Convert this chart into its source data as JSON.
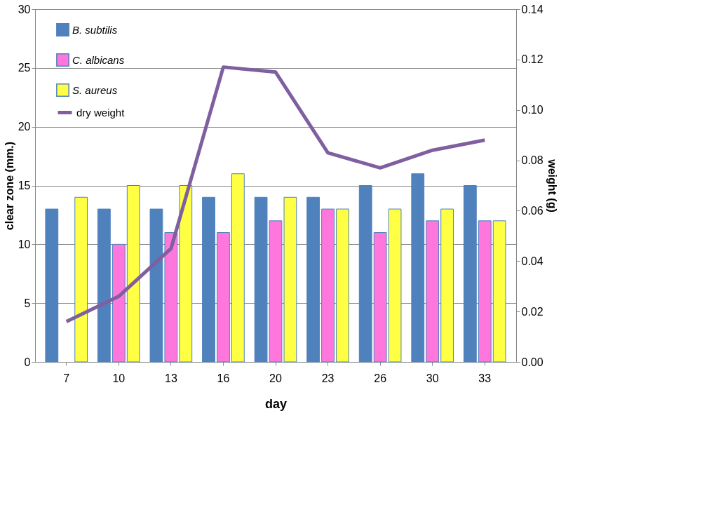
{
  "chart_data": {
    "type": "bar",
    "xlabel": "day",
    "ylabel": "clear zone (mm.)",
    "y2label": "weight (g)",
    "categories": [
      "7",
      "10",
      "13",
      "16",
      "20",
      "23",
      "26",
      "30",
      "33"
    ],
    "series": [
      {
        "name": "B. subtilis",
        "color": "#4f81bd",
        "values": [
          13,
          13,
          13,
          14,
          14,
          14,
          15,
          16,
          15
        ]
      },
      {
        "name": "C. albicans",
        "color": "#ff77dd",
        "values": [
          null,
          10,
          11,
          11,
          12,
          13,
          11,
          12,
          12
        ]
      },
      {
        "name": "S. aureus",
        "color": "#ffff44",
        "values": [
          14,
          15,
          15,
          16,
          14,
          13,
          13,
          13,
          12
        ]
      },
      {
        "name": "dry weight",
        "color": "#7f5fa0",
        "type": "line",
        "axis": "y2",
        "values": [
          0.016,
          0.026,
          0.045,
          0.117,
          0.115,
          0.083,
          0.077,
          0.084,
          0.088
        ]
      }
    ],
    "ylim": [
      0,
      30
    ],
    "yticks": [
      0,
      5,
      10,
      15,
      20,
      25,
      30
    ],
    "y2lim": [
      0,
      0.14
    ],
    "y2ticks": [
      {
        "value": 0,
        "label": "0.00"
      },
      {
        "value": 0.02,
        "label": "0.02"
      },
      {
        "value": 0.04,
        "label": "0.04"
      },
      {
        "value": 0.06,
        "label": "0.06"
      },
      {
        "value": 0.08,
        "label": "0.08"
      },
      {
        "value": 0.1,
        "label": "0.10"
      },
      {
        "value": 0.12,
        "label": "0.12"
      },
      {
        "value": 0.14,
        "label": "0.14"
      }
    ],
    "grid": "y",
    "legend": "top left",
    "line_style": "solid",
    "marker": "none"
  }
}
